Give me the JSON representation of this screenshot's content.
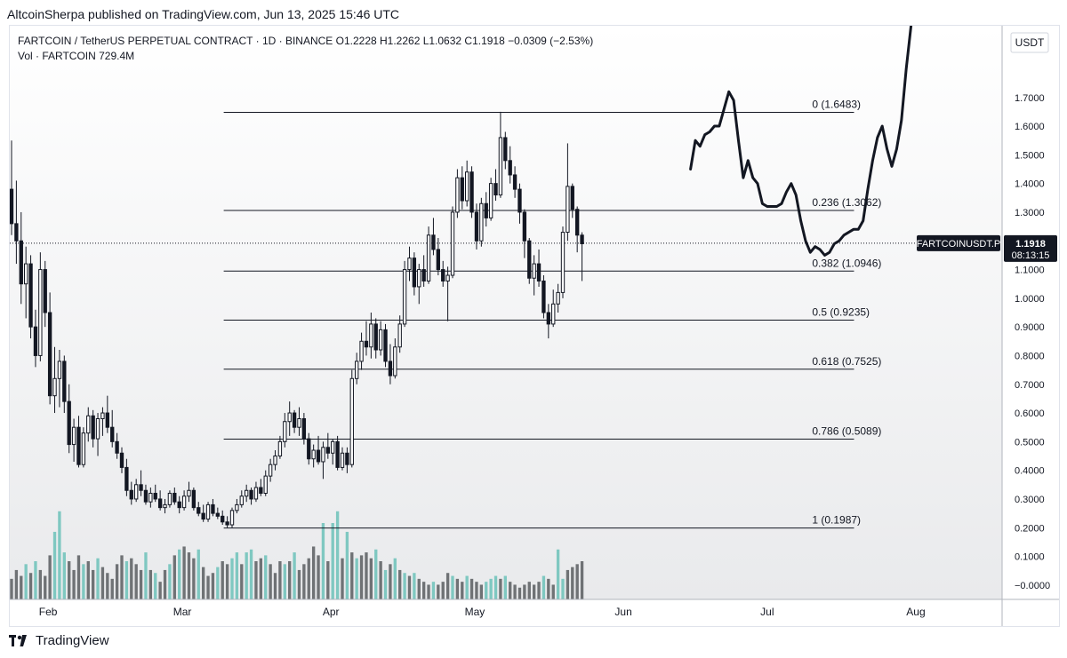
{
  "header": {
    "published": "AltcoinSherpa published on TradingView.com, Jun 13, 2025 15:46 UTC"
  },
  "legend": {
    "line1": "FARTCOIN / TetherUS PERPETUAL CONTRACT · 1D · BINANCE  O1.2228  H1.2262  L1.0632  C1.1918  −0.0309 (−2.53%)",
    "line2": "Vol · FARTCOIN  729.4M"
  },
  "footer": {
    "brand": "TradingView",
    "icon": "tradingview-logo-icon"
  },
  "colors": {
    "up": "#ffffff",
    "down": "#131722",
    "candle_outline": "#131722",
    "vol_up": "#7fc8c1",
    "vol_down": "#6f7275",
    "fib_line": "#131722",
    "projection": "#131722",
    "price_label_bg": "#131722",
    "background": "#ffffff"
  },
  "chart_data": {
    "type": "candlestick",
    "symbol": "FARTCOINUSDT.P",
    "currency": "USDT",
    "ylim": [
      -0.05,
      1.95
    ],
    "y_ticks": [
      -0.0,
      0.1,
      0.2,
      0.3,
      0.4,
      0.5,
      0.6,
      0.7,
      0.8,
      0.9,
      1.0,
      1.1,
      1.2,
      1.3,
      1.4,
      1.5,
      1.6,
      1.7
    ],
    "y_tick_labels": [
      "−0.0000",
      "0.1000",
      "0.2000",
      "0.3000",
      "0.4000",
      "0.5000",
      "0.6000",
      "0.7000",
      "0.8000",
      "0.9000",
      "1.0000",
      "1.1000",
      "1.2000",
      "1.3000",
      "1.4000",
      "1.5000",
      "1.6000",
      "1.7000"
    ],
    "x_ticks": [
      {
        "label": "Feb",
        "date": "2025-02-01"
      },
      {
        "label": "Mar",
        "date": "2025-03-01"
      },
      {
        "label": "Apr",
        "date": "2025-04-01"
      },
      {
        "label": "May",
        "date": "2025-05-01"
      },
      {
        "label": "Jun",
        "date": "2025-06-01"
      },
      {
        "label": "Jul",
        "date": "2025-07-01"
      },
      {
        "label": "Aug",
        "date": "2025-08-01"
      }
    ],
    "xlim": [
      "2025-01-24",
      "2025-08-19"
    ],
    "last_price": {
      "value": "1.1918",
      "countdown": "08:13:15",
      "label": "FARTCOINUSDT.P",
      "y": 1.1918
    },
    "fib_levels": [
      {
        "label": "0 (1.6483)",
        "value": 1.6483
      },
      {
        "label": "0.236 (1.3062)",
        "value": 1.3062
      },
      {
        "label": "0.382 (1.0946)",
        "value": 1.0946
      },
      {
        "label": "0.5 (0.9235)",
        "value": 0.9235
      },
      {
        "label": "0.618 (0.7525)",
        "value": 0.7525
      },
      {
        "label": "0.786 (0.5089)",
        "value": 0.5089
      },
      {
        "label": "1 (0.1987)",
        "value": 0.1987
      }
    ],
    "fib_start": "2025-03-10",
    "candle_start": "2025-01-24",
    "candles": [
      [
        1.38,
        1.55,
        1.22,
        1.26
      ],
      [
        1.26,
        1.41,
        1.12,
        1.2
      ],
      [
        1.2,
        1.3,
        0.98,
        1.05
      ],
      [
        1.05,
        1.18,
        0.93,
        1.12
      ],
      [
        1.12,
        1.15,
        0.86,
        0.9
      ],
      [
        0.9,
        0.96,
        0.76,
        0.8
      ],
      [
        0.8,
        1.16,
        0.78,
        1.1
      ],
      [
        1.1,
        1.13,
        0.9,
        0.95
      ],
      [
        0.95,
        1.02,
        0.63,
        0.66
      ],
      [
        0.66,
        0.83,
        0.6,
        0.72
      ],
      [
        0.72,
        0.82,
        0.62,
        0.78
      ],
      [
        0.78,
        0.8,
        0.6,
        0.64
      ],
      [
        0.64,
        0.7,
        0.46,
        0.49
      ],
      [
        0.49,
        0.58,
        0.43,
        0.55
      ],
      [
        0.55,
        0.59,
        0.41,
        0.42
      ],
      [
        0.42,
        0.55,
        0.41,
        0.53
      ],
      [
        0.53,
        0.62,
        0.5,
        0.59
      ],
      [
        0.59,
        0.61,
        0.48,
        0.51
      ],
      [
        0.51,
        0.6,
        0.45,
        0.58
      ],
      [
        0.58,
        0.62,
        0.52,
        0.6
      ],
      [
        0.6,
        0.66,
        0.53,
        0.55
      ],
      [
        0.55,
        0.61,
        0.48,
        0.5
      ],
      [
        0.5,
        0.53,
        0.44,
        0.46
      ],
      [
        0.46,
        0.48,
        0.39,
        0.41
      ],
      [
        0.41,
        0.44,
        0.31,
        0.33
      ],
      [
        0.33,
        0.36,
        0.28,
        0.3
      ],
      [
        0.3,
        0.37,
        0.29,
        0.35
      ],
      [
        0.35,
        0.4,
        0.31,
        0.33
      ],
      [
        0.33,
        0.35,
        0.28,
        0.29
      ],
      [
        0.29,
        0.34,
        0.27,
        0.32
      ],
      [
        0.32,
        0.35,
        0.29,
        0.3
      ],
      [
        0.3,
        0.33,
        0.26,
        0.27
      ],
      [
        0.27,
        0.3,
        0.25,
        0.28
      ],
      [
        0.28,
        0.33,
        0.27,
        0.32
      ],
      [
        0.32,
        0.34,
        0.28,
        0.29
      ],
      [
        0.29,
        0.31,
        0.25,
        0.27
      ],
      [
        0.27,
        0.33,
        0.26,
        0.31
      ],
      [
        0.31,
        0.36,
        0.29,
        0.33
      ],
      [
        0.33,
        0.34,
        0.26,
        0.27
      ],
      [
        0.27,
        0.29,
        0.24,
        0.25
      ],
      [
        0.25,
        0.28,
        0.22,
        0.23
      ],
      [
        0.23,
        0.29,
        0.22,
        0.28
      ],
      [
        0.28,
        0.3,
        0.24,
        0.25
      ],
      [
        0.25,
        0.27,
        0.23,
        0.24
      ],
      [
        0.24,
        0.26,
        0.21,
        0.22
      ],
      [
        0.22,
        0.24,
        0.2,
        0.21
      ],
      [
        0.21,
        0.27,
        0.2,
        0.26
      ],
      [
        0.26,
        0.3,
        0.25,
        0.28
      ],
      [
        0.28,
        0.33,
        0.27,
        0.31
      ],
      [
        0.31,
        0.35,
        0.29,
        0.33
      ],
      [
        0.33,
        0.34,
        0.28,
        0.3
      ],
      [
        0.3,
        0.36,
        0.29,
        0.34
      ],
      [
        0.34,
        0.37,
        0.31,
        0.32
      ],
      [
        0.32,
        0.4,
        0.31,
        0.38
      ],
      [
        0.38,
        0.44,
        0.36,
        0.42
      ],
      [
        0.42,
        0.47,
        0.4,
        0.45
      ],
      [
        0.45,
        0.52,
        0.44,
        0.5
      ],
      [
        0.5,
        0.6,
        0.48,
        0.57
      ],
      [
        0.57,
        0.64,
        0.52,
        0.6
      ],
      [
        0.6,
        0.61,
        0.53,
        0.55
      ],
      [
        0.55,
        0.62,
        0.52,
        0.58
      ],
      [
        0.58,
        0.6,
        0.49,
        0.51
      ],
      [
        0.51,
        0.53,
        0.42,
        0.44
      ],
      [
        0.44,
        0.49,
        0.41,
        0.47
      ],
      [
        0.47,
        0.52,
        0.42,
        0.43
      ],
      [
        0.43,
        0.5,
        0.37,
        0.48
      ],
      [
        0.48,
        0.53,
        0.44,
        0.46
      ],
      [
        0.46,
        0.51,
        0.42,
        0.5
      ],
      [
        0.5,
        0.52,
        0.4,
        0.41
      ],
      [
        0.41,
        0.48,
        0.4,
        0.46
      ],
      [
        0.46,
        0.48,
        0.39,
        0.42
      ],
      [
        0.42,
        0.75,
        0.41,
        0.72
      ],
      [
        0.72,
        0.81,
        0.7,
        0.78
      ],
      [
        0.78,
        0.88,
        0.75,
        0.85
      ],
      [
        0.85,
        0.92,
        0.8,
        0.83
      ],
      [
        0.83,
        0.95,
        0.79,
        0.91
      ],
      [
        0.91,
        0.93,
        0.79,
        0.82
      ],
      [
        0.82,
        0.92,
        0.8,
        0.89
      ],
      [
        0.89,
        0.91,
        0.76,
        0.78
      ],
      [
        0.78,
        0.84,
        0.7,
        0.73
      ],
      [
        0.73,
        0.86,
        0.72,
        0.83
      ],
      [
        0.83,
        0.94,
        0.81,
        0.91
      ],
      [
        0.91,
        1.13,
        0.9,
        1.1
      ],
      [
        1.1,
        1.18,
        1.06,
        1.14
      ],
      [
        1.14,
        1.16,
        1.01,
        1.04
      ],
      [
        1.04,
        1.12,
        0.98,
        1.1
      ],
      [
        1.1,
        1.15,
        1.04,
        1.06
      ],
      [
        1.06,
        1.25,
        1.05,
        1.22
      ],
      [
        1.22,
        1.28,
        1.15,
        1.17
      ],
      [
        1.17,
        1.21,
        1.08,
        1.1
      ],
      [
        1.1,
        1.13,
        1.04,
        1.06
      ],
      [
        1.06,
        1.11,
        0.92,
        1.08
      ],
      [
        1.08,
        1.32,
        1.07,
        1.3
      ],
      [
        1.3,
        1.45,
        1.28,
        1.42
      ],
      [
        1.42,
        1.46,
        1.31,
        1.34
      ],
      [
        1.34,
        1.48,
        1.32,
        1.44
      ],
      [
        1.44,
        1.46,
        1.28,
        1.3
      ],
      [
        1.3,
        1.33,
        1.17,
        1.2
      ],
      [
        1.2,
        1.35,
        1.18,
        1.33
      ],
      [
        1.33,
        1.37,
        1.25,
        1.28
      ],
      [
        1.28,
        1.42,
        1.27,
        1.4
      ],
      [
        1.4,
        1.45,
        1.34,
        1.36
      ],
      [
        1.36,
        1.65,
        1.35,
        1.56
      ],
      [
        1.56,
        1.58,
        1.45,
        1.48
      ],
      [
        1.48,
        1.53,
        1.4,
        1.43
      ],
      [
        1.43,
        1.46,
        1.35,
        1.38
      ],
      [
        1.38,
        1.4,
        1.26,
        1.3
      ],
      [
        1.3,
        1.31,
        1.14,
        1.2
      ],
      [
        1.2,
        1.21,
        1.05,
        1.07
      ],
      [
        1.07,
        1.15,
        1.01,
        1.12
      ],
      [
        1.12,
        1.17,
        1.04,
        1.06
      ],
      [
        1.06,
        1.08,
        0.93,
        0.95
      ],
      [
        0.95,
        0.98,
        0.86,
        0.91
      ],
      [
        0.91,
        1.03,
        0.9,
        0.98
      ],
      [
        0.98,
        1.05,
        0.95,
        1.02
      ],
      [
        1.02,
        1.25,
        1.0,
        1.23
      ],
      [
        1.23,
        1.54,
        1.2,
        1.39
      ],
      [
        1.39,
        1.4,
        1.28,
        1.31
      ],
      [
        1.31,
        1.32,
        1.16,
        1.22
      ],
      [
        1.22,
        1.23,
        1.06,
        1.19
      ]
    ],
    "volume": {
      "ylim": [
        0,
        2.6
      ],
      "values": [
        [
          0.7,
          0
        ],
        [
          1.0,
          0
        ],
        [
          0.8,
          0
        ],
        [
          1.2,
          1
        ],
        [
          0.9,
          0
        ],
        [
          1.3,
          1
        ],
        [
          1.0,
          0
        ],
        [
          0.8,
          0
        ],
        [
          1.5,
          0
        ],
        [
          2.3,
          1
        ],
        [
          3.0,
          1
        ],
        [
          1.6,
          1
        ],
        [
          1.3,
          0
        ],
        [
          1.0,
          0
        ],
        [
          1.5,
          0
        ],
        [
          1.2,
          1
        ],
        [
          1.3,
          0
        ],
        [
          1.0,
          0
        ],
        [
          1.4,
          1
        ],
        [
          1.1,
          0
        ],
        [
          0.9,
          0
        ],
        [
          0.7,
          0
        ],
        [
          1.2,
          0
        ],
        [
          1.5,
          0
        ],
        [
          1.3,
          1
        ],
        [
          1.4,
          0
        ],
        [
          1.2,
          0
        ],
        [
          1.0,
          0
        ],
        [
          1.6,
          1
        ],
        [
          1.0,
          0
        ],
        [
          0.9,
          1
        ],
        [
          0.6,
          0
        ],
        [
          1.0,
          0
        ],
        [
          1.2,
          1
        ],
        [
          1.5,
          0
        ],
        [
          1.7,
          1
        ],
        [
          1.8,
          0
        ],
        [
          1.6,
          0
        ],
        [
          1.4,
          0
        ],
        [
          1.7,
          1
        ],
        [
          1.1,
          0
        ],
        [
          0.8,
          0
        ],
        [
          0.9,
          0
        ],
        [
          1.1,
          1
        ],
        [
          1.3,
          0
        ],
        [
          1.2,
          0
        ],
        [
          1.4,
          1
        ],
        [
          1.6,
          1
        ],
        [
          1.2,
          0
        ],
        [
          1.6,
          1
        ],
        [
          1.7,
          1
        ],
        [
          1.3,
          0
        ],
        [
          1.4,
          0
        ],
        [
          1.5,
          1
        ],
        [
          1.2,
          0
        ],
        [
          0.9,
          0
        ],
        [
          1.3,
          0
        ],
        [
          1.2,
          1
        ],
        [
          1.3,
          0
        ],
        [
          1.6,
          1
        ],
        [
          1.0,
          0
        ],
        [
          1.2,
          0
        ],
        [
          1.4,
          0
        ],
        [
          1.8,
          0
        ],
        [
          1.5,
          0
        ],
        [
          2.6,
          1
        ],
        [
          1.3,
          0
        ],
        [
          2.6,
          1
        ],
        [
          3.0,
          1
        ],
        [
          1.4,
          0
        ],
        [
          2.3,
          1
        ],
        [
          1.6,
          0
        ],
        [
          1.4,
          1
        ],
        [
          1.5,
          0
        ],
        [
          1.6,
          0
        ],
        [
          1.4,
          0
        ],
        [
          1.7,
          1
        ],
        [
          1.3,
          0
        ],
        [
          1.0,
          1
        ],
        [
          1.2,
          0
        ],
        [
          1.4,
          1
        ],
        [
          1.0,
          0
        ],
        [
          0.9,
          1
        ],
        [
          0.8,
          0
        ],
        [
          0.9,
          1
        ],
        [
          0.7,
          0
        ],
        [
          0.6,
          0
        ],
        [
          0.5,
          0
        ],
        [
          0.6,
          1
        ],
        [
          0.5,
          0
        ],
        [
          0.6,
          0
        ],
        [
          0.9,
          0
        ],
        [
          0.8,
          1
        ],
        [
          0.7,
          0
        ],
        [
          0.6,
          0
        ],
        [
          0.8,
          1
        ],
        [
          0.7,
          0
        ],
        [
          0.6,
          0
        ],
        [
          0.5,
          0
        ],
        [
          0.6,
          1
        ],
        [
          0.7,
          1
        ],
        [
          0.8,
          1
        ],
        [
          0.7,
          0
        ],
        [
          0.8,
          1
        ],
        [
          0.6,
          0
        ],
        [
          0.5,
          0
        ],
        [
          0.4,
          0
        ],
        [
          0.5,
          0
        ],
        [
          0.6,
          0
        ],
        [
          0.5,
          0
        ],
        [
          0.6,
          0
        ],
        [
          0.8,
          1
        ],
        [
          0.7,
          0
        ],
        [
          0.5,
          0
        ],
        [
          1.7,
          1
        ],
        [
          0.7,
          1
        ],
        [
          1.0,
          0
        ],
        [
          1.1,
          0
        ],
        [
          1.2,
          0
        ],
        [
          1.3,
          0
        ]
      ]
    },
    "projection": [
      [
        "2025-06-15",
        1.45
      ],
      [
        "2025-06-16",
        1.55
      ],
      [
        "2025-06-17",
        1.53
      ],
      [
        "2025-06-18",
        1.57
      ],
      [
        "2025-06-19",
        1.58
      ],
      [
        "2025-06-20",
        1.6
      ],
      [
        "2025-06-21",
        1.6
      ],
      [
        "2025-06-22",
        1.66
      ],
      [
        "2025-06-23",
        1.72
      ],
      [
        "2025-06-24",
        1.69
      ],
      [
        "2025-06-25",
        1.55
      ],
      [
        "2025-06-26",
        1.42
      ],
      [
        "2025-06-27",
        1.48
      ],
      [
        "2025-06-28",
        1.42
      ],
      [
        "2025-06-29",
        1.4
      ],
      [
        "2025-06-30",
        1.33
      ],
      [
        "2025-07-01",
        1.32
      ],
      [
        "2025-07-02",
        1.32
      ],
      [
        "2025-07-03",
        1.32
      ],
      [
        "2025-07-04",
        1.33
      ],
      [
        "2025-07-05",
        1.37
      ],
      [
        "2025-07-06",
        1.4
      ],
      [
        "2025-07-07",
        1.36
      ],
      [
        "2025-07-08",
        1.27
      ],
      [
        "2025-07-09",
        1.2
      ],
      [
        "2025-07-10",
        1.16
      ],
      [
        "2025-07-11",
        1.18
      ],
      [
        "2025-07-12",
        1.17
      ],
      [
        "2025-07-13",
        1.15
      ],
      [
        "2025-07-14",
        1.16
      ],
      [
        "2025-07-15",
        1.19
      ],
      [
        "2025-07-16",
        1.2
      ],
      [
        "2025-07-17",
        1.22
      ],
      [
        "2025-07-18",
        1.23
      ],
      [
        "2025-07-19",
        1.24
      ],
      [
        "2025-07-20",
        1.24
      ],
      [
        "2025-07-21",
        1.27
      ],
      [
        "2025-07-22",
        1.38
      ],
      [
        "2025-07-23",
        1.48
      ],
      [
        "2025-07-24",
        1.56
      ],
      [
        "2025-07-25",
        1.6
      ],
      [
        "2025-07-26",
        1.52
      ],
      [
        "2025-07-27",
        1.46
      ],
      [
        "2025-07-28",
        1.52
      ],
      [
        "2025-07-29",
        1.62
      ],
      [
        "2025-07-30",
        1.8
      ],
      [
        "2025-07-31",
        1.95
      ]
    ]
  }
}
